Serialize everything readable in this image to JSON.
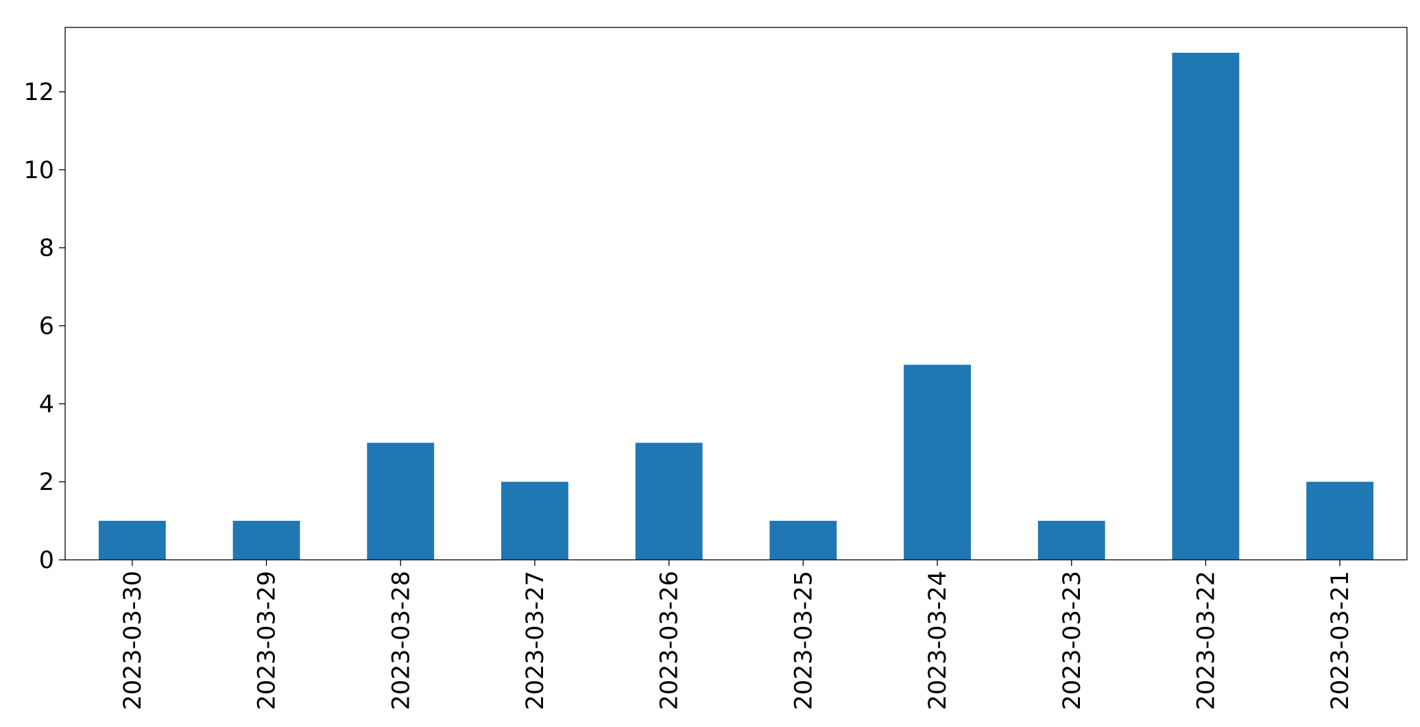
{
  "chart_data": {
    "type": "bar",
    "categories": [
      "2023-03-30",
      "2023-03-29",
      "2023-03-28",
      "2023-03-27",
      "2023-03-26",
      "2023-03-25",
      "2023-03-24",
      "2023-03-23",
      "2023-03-22",
      "2023-03-21"
    ],
    "values": [
      1,
      1,
      3,
      2,
      3,
      1,
      5,
      1,
      13,
      2
    ],
    "color": "#1f77b4",
    "ylim": [
      0,
      13.65
    ],
    "yticks": [
      0,
      2,
      4,
      6,
      8,
      10,
      12
    ],
    "grid": false
  }
}
